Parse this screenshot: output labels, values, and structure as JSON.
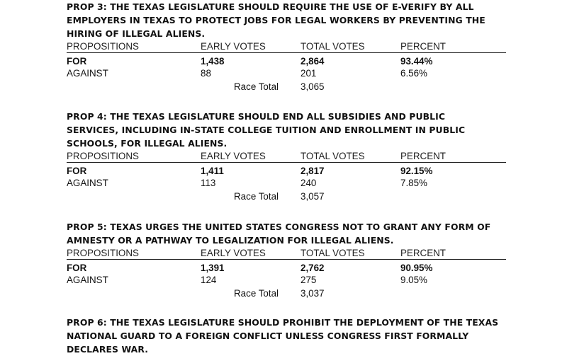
{
  "headers": {
    "propositions": "PROPOSITIONS",
    "early_votes": "EARLY VOTES",
    "total_votes": "TOTAL VOTES",
    "percent": "PERCENT"
  },
  "race_total_label": "Race Total",
  "props": [
    {
      "title_lines": [
        "PROP 3: THE TEXAS LEGISLATURE SHOULD REQUIRE THE USE OF E-VERIFY BY ALL",
        "EMPLOYERS IN TEXAS TO PROTECT JOBS FOR LEGAL WORKERS BY PREVENTING THE",
        "HIRING OF ILLEGAL ALIENS."
      ],
      "for": {
        "label": "FOR",
        "early": "1,438",
        "total": "2,864",
        "percent": "93.44%"
      },
      "against": {
        "label": "AGAINST",
        "early": "88",
        "total": "201",
        "percent": "6.56%"
      },
      "race_total": "3,065"
    },
    {
      "title_lines": [
        "PROP 4: THE TEXAS LEGISLATURE SHOULD END ALL SUBSIDIES AND PUBLIC",
        "SERVICES, INCLUDING IN-STATE COLLEGE TUITION AND ENROLLMENT IN PUBLIC",
        "SCHOOLS, FOR ILLEGAL ALIENS."
      ],
      "for": {
        "label": "FOR",
        "early": "1,411",
        "total": "2,817",
        "percent": "92.15%"
      },
      "against": {
        "label": "AGAINST",
        "early": "113",
        "total": "240",
        "percent": "7.85%"
      },
      "race_total": "3,057"
    },
    {
      "title_lines": [
        "PROP 5: TEXAS URGES THE UNITED STATES CONGRESS NOT TO GRANT ANY FORM OF",
        "AMNESTY OR A PATHWAY TO LEGALIZATION FOR ILLEGAL ALIENS."
      ],
      "for": {
        "label": "FOR",
        "early": "1,391",
        "total": "2,762",
        "percent": "90.95%"
      },
      "against": {
        "label": "AGAINST",
        "early": "124",
        "total": "275",
        "percent": "9.05%"
      },
      "race_total": "3,037"
    },
    {
      "title_lines": [
        "PROP 6: THE TEXAS LEGISLATURE SHOULD PROHIBIT THE DEPLOYMENT OF THE TEXAS",
        "NATIONAL GUARD TO A FOREIGN CONFLICT UNLESS CONGRESS FIRST FORMALLY",
        "DECLARES WAR."
      ]
    }
  ]
}
